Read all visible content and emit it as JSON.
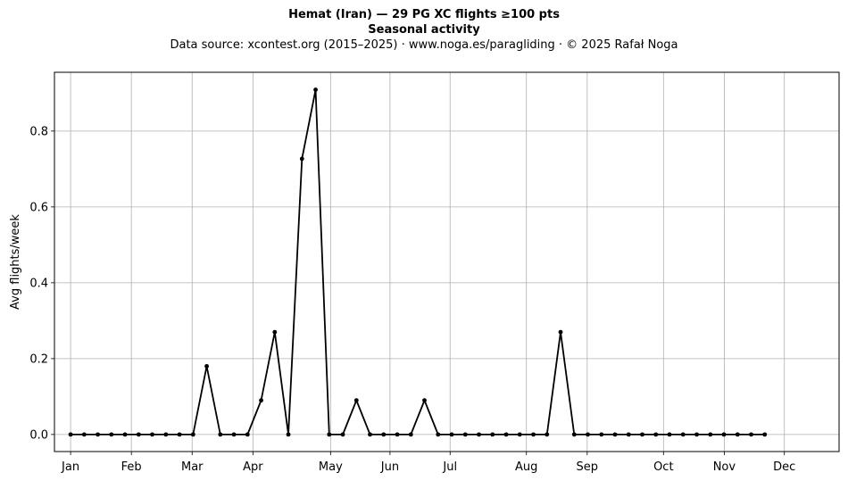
{
  "title_line1": "Hemat (Iran)  —  29 PG XC flights ≥100 pts",
  "title_line2": "Seasonal activity",
  "title_line3": "Data source: xcontest.org (2015–2025)  ·  www.noga.es/paragliding  ·  © 2025 Rafał Noga",
  "chart_data": {
    "type": "line",
    "title": "Hemat (Iran)  —  29 PG XC flights ≥100 pts",
    "subtitle": "Seasonal activity",
    "xlabel": "",
    "ylabel": "Avg flights/week",
    "ylim": [
      -0.045,
      0.955
    ],
    "xlim": [
      -0.239,
      11.38
    ],
    "grid": true,
    "yticks": [
      0.0,
      0.2,
      0.4,
      0.6,
      0.8
    ],
    "ytick_labels": [
      "0.0",
      "0.2",
      "0.4",
      "0.6",
      "0.8"
    ],
    "xticks": [
      {
        "label": "Jan",
        "x": 0.0
      },
      {
        "label": "Feb",
        "x": 0.9
      },
      {
        "label": "Mar",
        "x": 1.8
      },
      {
        "label": "Apr",
        "x": 2.7
      },
      {
        "label": "May",
        "x": 3.85
      },
      {
        "label": "Jun",
        "x": 4.73
      },
      {
        "label": "Jul",
        "x": 5.62
      },
      {
        "label": "Aug",
        "x": 6.75
      },
      {
        "label": "Sep",
        "x": 7.65
      },
      {
        "label": "Oct",
        "x": 8.78
      },
      {
        "label": "Nov",
        "x": 9.68
      },
      {
        "label": "Dec",
        "x": 10.57
      }
    ],
    "color": "#000000",
    "series": [
      {
        "values": [
          0,
          0,
          0,
          0,
          0,
          0,
          0,
          0,
          0,
          0,
          0.18,
          0,
          0,
          0,
          0.09,
          0.27,
          0,
          0.727,
          0.909,
          0,
          0,
          0.09,
          0,
          0,
          0,
          0,
          0.09,
          0,
          0,
          0,
          0,
          0,
          0,
          0,
          0,
          0,
          0.27,
          0,
          0,
          0,
          0,
          0,
          0,
          0,
          0,
          0,
          0,
          0,
          0,
          0,
          0,
          0
        ]
      }
    ]
  }
}
